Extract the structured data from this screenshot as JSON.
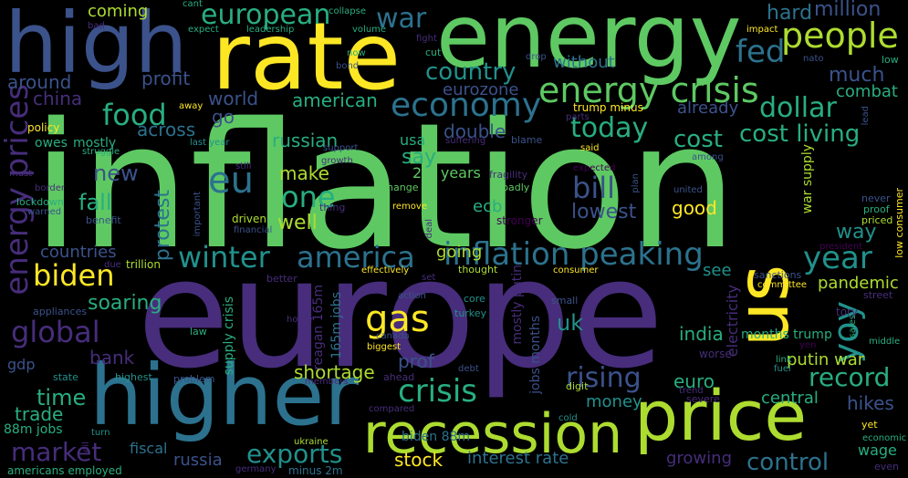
{
  "palette": {
    "background": "#000000",
    "colors": [
      "#440154",
      "#472d7b",
      "#3b528b",
      "#2c728e",
      "#21918c",
      "#28ae80",
      "#5ec962",
      "#addc30",
      "#fde725"
    ]
  },
  "words": {
    "inflation": "inflation",
    "europe": "europe",
    "energy": "energy",
    "rate": "rate",
    "high": "high",
    "higher": "higher",
    "recession": "recession",
    "price": "price",
    "us": "us",
    "energy_crisis": "energy crisis",
    "energy_prices": "energy prices",
    "inflation_peaking": "inflation peaking",
    "winter": "winter",
    "america": "america",
    "economy": "economy",
    "food": "food",
    "people": "people",
    "european": "european",
    "war": "war",
    "country": "country",
    "fed": "fed",
    "million": "million",
    "hard": "hard",
    "today": "today",
    "cost_living": "cost living",
    "dollar": "dollar",
    "one": "one",
    "eu": "eu",
    "bill": "bill",
    "biden": "biden",
    "year": "year",
    "gas": "gas",
    "global": "global",
    "crisis": "crisis",
    "rising": "rising",
    "record": "record",
    "market": "market",
    "exports": "exports",
    "control": "control",
    "yoy": "yoy",
    "uk": "uk",
    "china": "china",
    "around": "around",
    "coming": "coming",
    "profit": "profit",
    "world": "world",
    "american": "american",
    "eurozone": "eurozone",
    "without": "without",
    "much": "much",
    "combat": "combat",
    "go": "go",
    "across": "across",
    "already": "already",
    "cost": "cost",
    "russian": "russian",
    "usa": "usa",
    "double": "double",
    "say": "say",
    "make": "make",
    "2m_years": "2m years",
    "new": "new",
    "fall": "fall",
    "well": "well",
    "protest": "protest",
    "ecb": "ecb",
    "lowest": "lowest",
    "good": "good",
    "way": "way",
    "countries": "countries",
    "going": "going",
    "soaring": "soaring",
    "see": "see",
    "pandemic": "pandemic",
    "india": "india",
    "bank": "bank",
    "gdp": "gdp",
    "prof": "prof",
    "shortage": "shortage",
    "time": "time",
    "trade": "trade",
    "money": "money",
    "euro": "euro",
    "central": "central",
    "hikes": "hikes",
    "putin_war": "putin war",
    "fiscal": "fiscal",
    "stock": "stock",
    "interest_rate": "interest rate",
    "growing": "growing",
    "wage": "wage",
    "russia": "russia",
    "biden_88m": "biden 88m",
    "88m_jobs": "88m jobs",
    "months_trump": "months trump",
    "electricity": "electricity",
    "war_supply": "war supply",
    "supply_crisis": "supply crisis",
    "reagan_165m": "reagan 165m",
    "165m_jobs": "165m jobs",
    "mostly_putin": "mostly putin",
    "jobs_months": "jobs months",
    "owes": "owes",
    "mostly": "mostly",
    "trump_minus": "trump minus",
    "minus_2m": "minus 2m",
    "low_consumer": "low consumer",
    "tory": "tory",
    "street": "street",
    "sanctions": "sanctions",
    "committee": "committee",
    "worse": "worse",
    "link": "link",
    "fuel": "fuel",
    "severe": "severe",
    "yet": "yet",
    "economic": "economic",
    "even": "even",
    "middle": "middle",
    "sales": "sales",
    "yen": "yen",
    "trend": "trend",
    "digit": "digit",
    "cold": "cold",
    "compared": "compared",
    "ukraine": "ukraine",
    "germany": "germany",
    "americans_employed": "americans employed",
    "turn": "turn",
    "oil": "oil",
    "highest": "highest",
    "problem": "problem",
    "state": "state",
    "members": "members",
    "ahead": "ahead",
    "debt": "debt",
    "turkey": "turkey",
    "core": "core",
    "small": "small",
    "biggest": "biggest",
    "canada": "canada",
    "home": "home",
    "law": "law",
    "appliances": "appliances",
    "action": "action",
    "better": "better",
    "due": "due",
    "trillion": "trillion",
    "effectively": "effectively",
    "set": "set",
    "thought": "thought",
    "consumer": "consumer",
    "financial": "financial",
    "driven": "driven",
    "benefit": "benefit",
    "warned": "warned",
    "lockdown": "lockdown",
    "important": "important",
    "thing": "thing",
    "remove": "remove",
    "deal": "deal",
    "stronger": "stronger",
    "change": "change",
    "badly": "badly",
    "border": "border",
    "must": "must",
    "still": "still",
    "growth": "growth",
    "fragility": "fragility",
    "plan": "plan",
    "expected": "expected",
    "united": "united",
    "never": "never",
    "proof": "proof",
    "priced": "priced",
    "president": "president",
    "among": "among",
    "said": "said",
    "blame": "blame",
    "suffering": "suffering",
    "support": "support",
    "struggle": "struggle",
    "last_year": "last year",
    "policy": "policy",
    "away": "away",
    "parts": "parts",
    "lead": "lead",
    "low": "low",
    "nato": "nato",
    "impact": "impact",
    "drop": "drop",
    "bond": "bond",
    "now": "now",
    "cut": "cut",
    "fight": "fight",
    "volume": "volume",
    "collapse": "collapse",
    "leadership": "leadership",
    "expect": "expect",
    "cant": "cant",
    "bad": "bad"
  }
}
